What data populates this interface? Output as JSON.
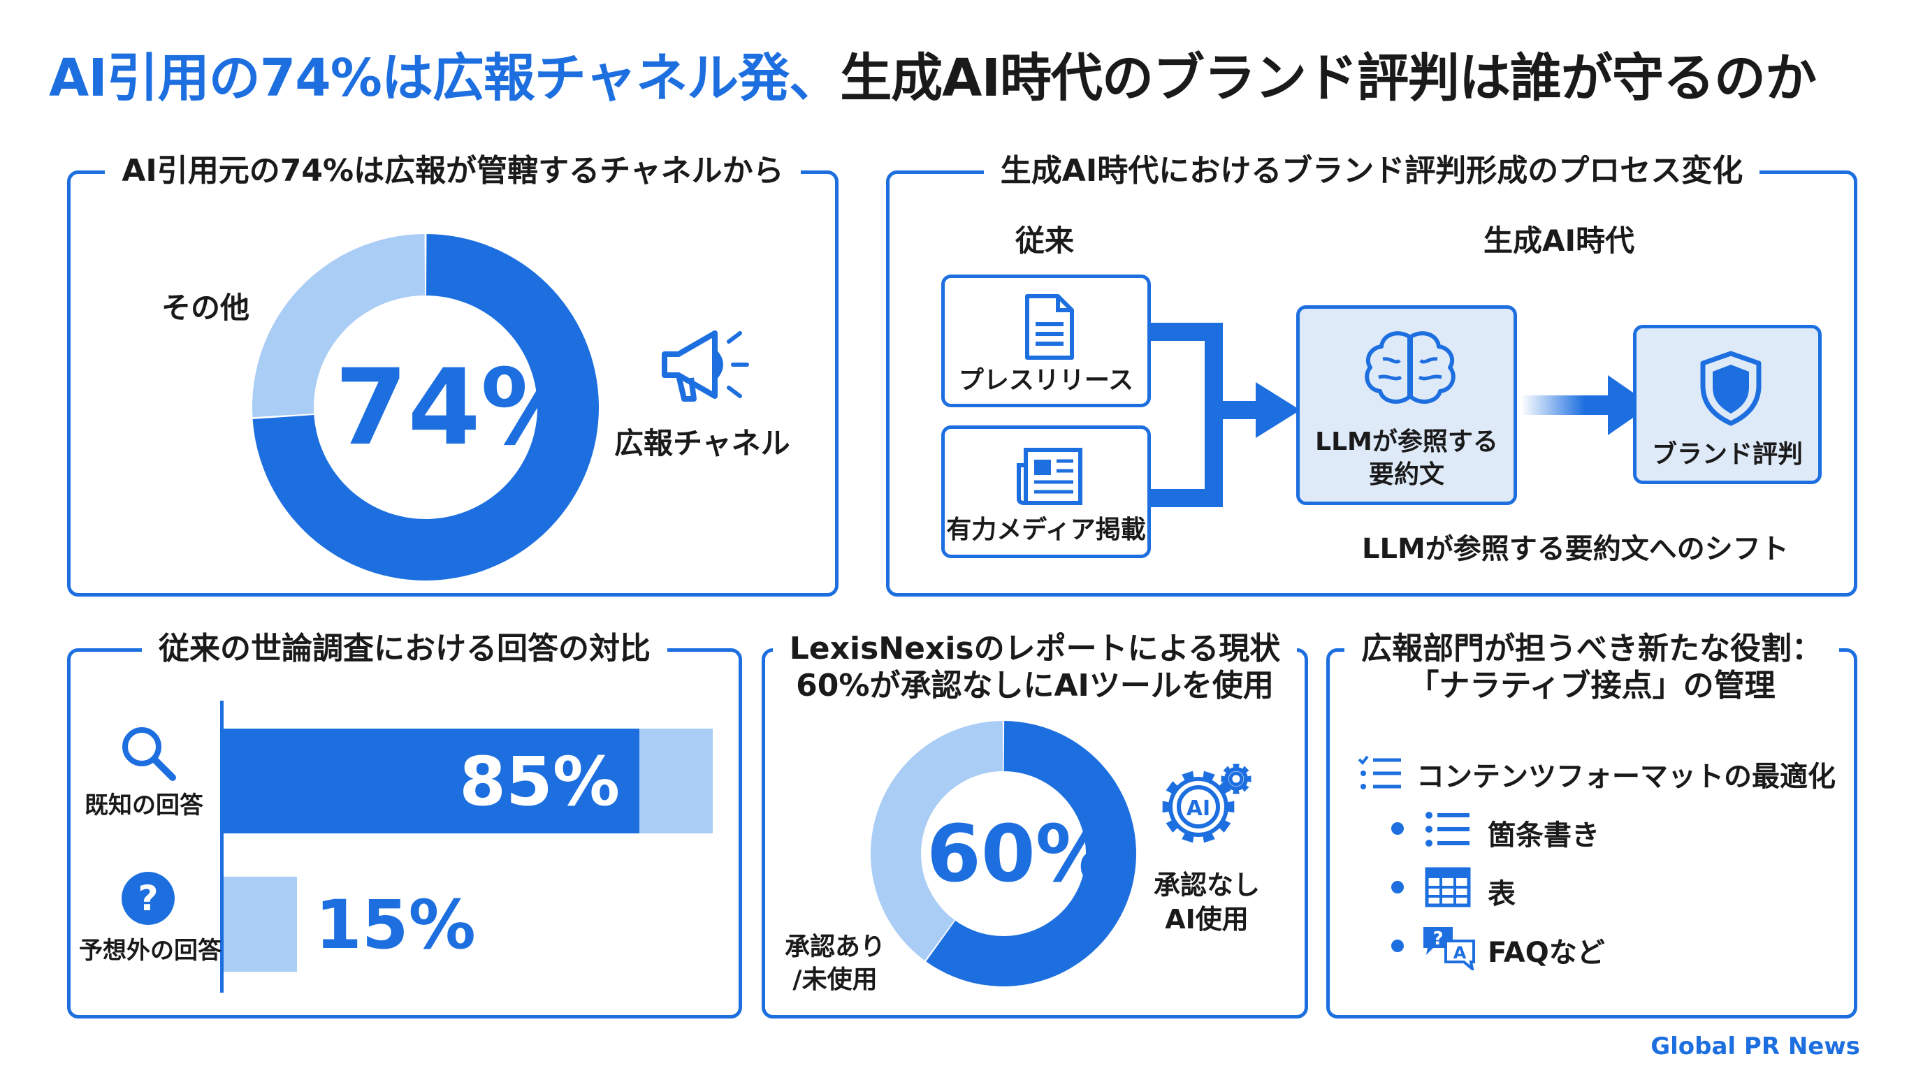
{
  "title": {
    "highlight": "AI引用の74%は広報チャネル発、",
    "rest": "生成AI時代のブランド評判は誰が守るのか"
  },
  "panel1": {
    "title": "AI引用元の74%は広報が管轄するチャネルから",
    "center_value": "74%",
    "label_major": "広報チャネル",
    "label_minor": "その他",
    "icon": "megaphone-icon",
    "chart": {
      "type": "pie",
      "slices": [
        {
          "label": "広報チャネル",
          "value": 74,
          "color": "#1d6fe0"
        },
        {
          "label": "その他",
          "value": 26,
          "color": "#a9cdf5"
        }
      ]
    }
  },
  "panel2": {
    "title": "生成AI時代におけるブランド評判形成のプロセス変化",
    "col_old": "従来",
    "col_new": "生成AI時代",
    "box_press": "プレスリリース",
    "box_media": "有力メディア掲載",
    "box_llm_line1": "LLMが参照する",
    "box_llm_line2": "要約文",
    "box_brand": "ブランド評判",
    "caption": "LLMが参照する要約文へのシフト",
    "icons": [
      "document-icon",
      "newspaper-icon",
      "brain-icon",
      "shield-icon"
    ]
  },
  "panel3": {
    "title": "従来の世論調査における回答の対比",
    "bars": [
      {
        "label": "既知の回答",
        "value_text": "85%",
        "icon": "search-icon"
      },
      {
        "label": "予想外の回答",
        "value_text": "15%",
        "icon": "question-icon"
      }
    ],
    "chart": {
      "type": "bar",
      "categories": [
        "既知の回答",
        "予想外の回答"
      ],
      "values": [
        85,
        15
      ]
    }
  },
  "panel4": {
    "title_line1": "LexisNexisのレポートによる現状",
    "title_line2": "60%が承認なしにAIツールを使用",
    "center_value": "60%",
    "label_major_line1": "承認なし",
    "label_major_line2": "AI使用",
    "label_minor_line1": "承認あり",
    "label_minor_line2": "/未使用",
    "icon": "ai-gear-icon",
    "chart": {
      "type": "pie",
      "slices": [
        {
          "label": "承認なしAI使用",
          "value": 60,
          "color": "#1d6fe0"
        },
        {
          "label": "承認あり/未使用",
          "value": 40,
          "color": "#a9cdf5"
        }
      ]
    }
  },
  "panel5": {
    "title_line1": "広報部門が担うべき新たな役割：",
    "title_line2": "「ナラティブ接点」の管理",
    "main_item": "コンテンツフォーマットの最適化",
    "sub_items": [
      {
        "label": "箇条書き",
        "icon": "list-icon"
      },
      {
        "label": "表",
        "icon": "table-icon"
      },
      {
        "label": "FAQなど",
        "icon": "faq-icon"
      }
    ]
  },
  "brand": "Global PR News",
  "colors": {
    "primary": "#1d6fe0",
    "light": "#a9cdf5",
    "box_fill": "#dfeaf9"
  }
}
